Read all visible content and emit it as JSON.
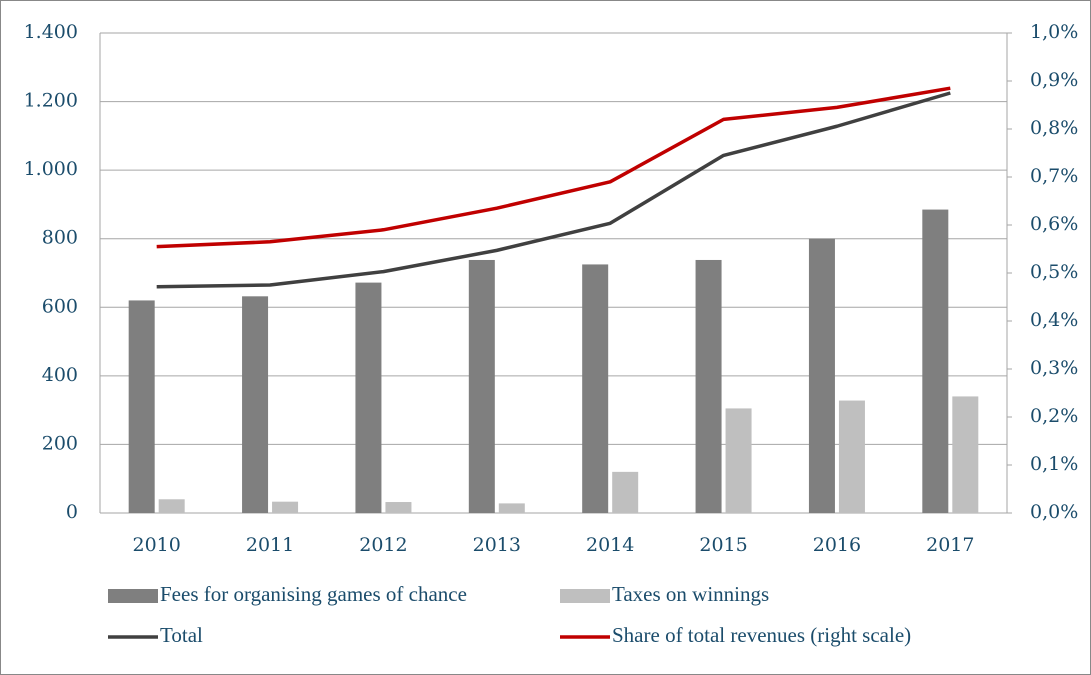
{
  "chart_data": {
    "type": "bar",
    "categories": [
      "2010",
      "2011",
      "2012",
      "2013",
      "2014",
      "2015",
      "2016",
      "2017"
    ],
    "series": [
      {
        "name": "Fees for organising games of chance",
        "type": "bar",
        "color": "#7f7f7f",
        "values": [
          620,
          632,
          672,
          738,
          725,
          738,
          800,
          885
        ]
      },
      {
        "name": "Taxes on winnings",
        "type": "bar",
        "color": "#bfbfbf",
        "values": [
          40,
          33,
          32,
          28,
          120,
          305,
          328,
          340
        ]
      },
      {
        "name": "Total",
        "type": "line",
        "color": "#404040",
        "values": [
          660,
          665,
          704,
          766,
          845,
          1043,
          1128,
          1225
        ]
      },
      {
        "name": "Share of total revenues (right scale)",
        "type": "line",
        "axis": "y2",
        "color": "#c00000",
        "values": [
          0.555,
          0.565,
          0.59,
          0.635,
          0.69,
          0.82,
          0.845,
          0.885
        ]
      }
    ],
    "ylim": [
      0,
      1400
    ],
    "yticks": [
      0,
      200,
      400,
      600,
      800,
      {
        "value": 1000,
        "label": "1.000"
      },
      {
        "value": 1200,
        "label": "1.200"
      },
      {
        "value": 1400,
        "label": "1.400"
      }
    ],
    "y2lim": [
      0,
      1.0
    ],
    "y2ticks": [
      {
        "value": 0,
        "label": "0,0%"
      },
      {
        "value": 0.1,
        "label": "0,1%"
      },
      {
        "value": 0.2,
        "label": "0,2%"
      },
      {
        "value": 0.3,
        "label": "0,3%"
      },
      {
        "value": 0.4,
        "label": "0,4%"
      },
      {
        "value": 0.5,
        "label": "0,5%"
      },
      {
        "value": 0.6,
        "label": "0,6%"
      },
      {
        "value": 0.7,
        "label": "0,7%"
      },
      {
        "value": 0.8,
        "label": "0,8%"
      },
      {
        "value": 0.9,
        "label": "0,9%"
      },
      {
        "value": 1.0,
        "label": "1,0%"
      }
    ],
    "grid": true,
    "legend": "bottom"
  }
}
